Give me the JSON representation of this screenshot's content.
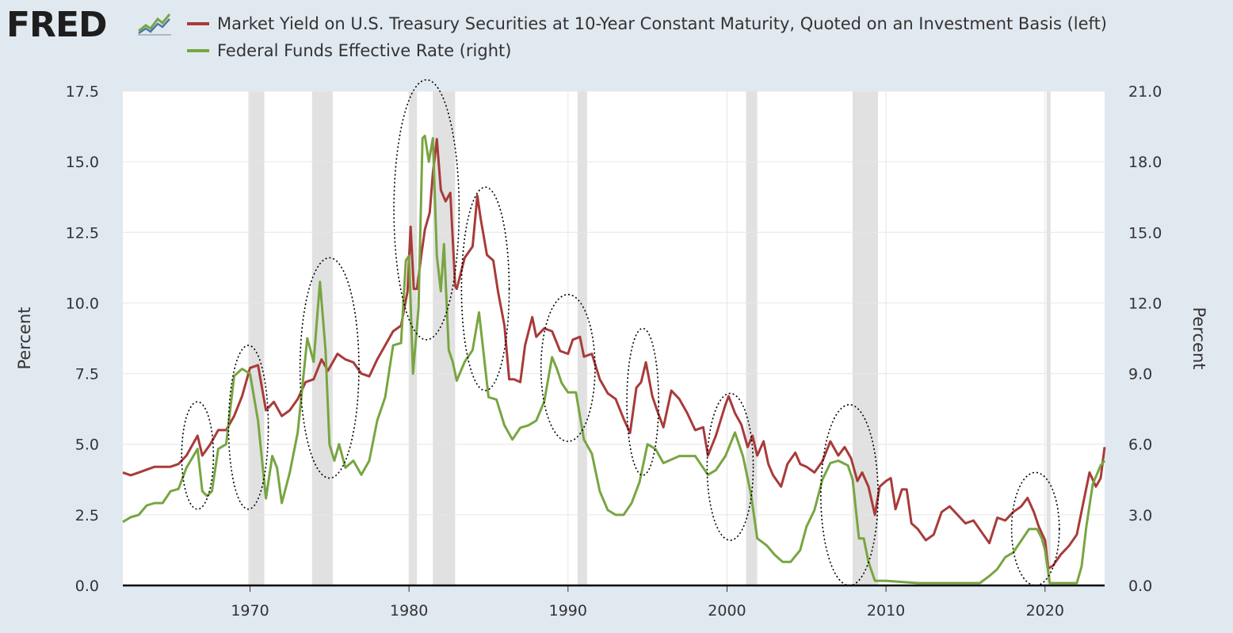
{
  "header": {
    "logo_text": "FRED",
    "logo_icon": "fred-line-chart-icon"
  },
  "colors": {
    "series1": "#a83b3a",
    "series2": "#78a542",
    "recession": "#e1e1e1",
    "plot_bg": "#ffffff",
    "page_bg": "#e1e9f0",
    "annotation": "#000000"
  },
  "chart_data": {
    "type": "line",
    "x_axis": {
      "min": 1962.0,
      "max": 2023.75,
      "ticks": [
        "1970",
        "1980",
        "1990",
        "2000",
        "2010",
        "2020"
      ]
    },
    "left_axis": {
      "label": "Percent",
      "min": 0,
      "max": 17.5,
      "ticks": [
        "0.0",
        "2.5",
        "5.0",
        "7.5",
        "10.0",
        "12.5",
        "15.0",
        "17.5"
      ]
    },
    "right_axis": {
      "label": "Percent",
      "min": 0,
      "max": 21,
      "ticks": [
        "0.0",
        "3.0",
        "6.0",
        "9.0",
        "12.0",
        "15.0",
        "18.0",
        "21.0"
      ]
    },
    "grid": true,
    "legend_position": "top-left",
    "recessions": [
      [
        1969.9,
        1970.9
      ],
      [
        1973.9,
        1975.2
      ],
      [
        1980.0,
        1980.5
      ],
      [
        1981.5,
        1982.9
      ],
      [
        1990.6,
        1991.2
      ],
      [
        2001.2,
        2001.9
      ],
      [
        2007.9,
        2009.5
      ],
      [
        2020.1,
        2020.35
      ]
    ],
    "series": [
      {
        "name": "Market Yield on U.S. Treasury Securities at 10-Year Constant Maturity, Quoted on an Investment Basis (left)",
        "axis": "left",
        "x": [
          1962.0,
          1962.5,
          1963.0,
          1964.0,
          1965.0,
          1965.5,
          1966.0,
          1966.7,
          1967.0,
          1967.5,
          1968.0,
          1968.5,
          1969.0,
          1969.5,
          1970.0,
          1970.5,
          1971.0,
          1971.5,
          1972.0,
          1972.5,
          1973.0,
          1973.5,
          1974.0,
          1974.5,
          1974.9,
          1975.5,
          1976.0,
          1976.5,
          1977.0,
          1977.5,
          1978.0,
          1978.5,
          1979.0,
          1979.5,
          1979.9,
          1980.1,
          1980.3,
          1980.5,
          1980.8,
          1981.0,
          1981.3,
          1981.5,
          1981.75,
          1982.0,
          1982.3,
          1982.6,
          1982.9,
          1983.0,
          1983.5,
          1984.0,
          1984.3,
          1984.5,
          1984.9,
          1985.3,
          1985.6,
          1986.0,
          1986.3,
          1986.6,
          1987.0,
          1987.3,
          1987.75,
          1988.0,
          1988.5,
          1989.0,
          1989.5,
          1990.0,
          1990.3,
          1990.75,
          1991.0,
          1991.5,
          1992.0,
          1992.5,
          1993.0,
          1993.5,
          1993.9,
          1994.3,
          1994.6,
          1994.9,
          1995.3,
          1995.6,
          1996.0,
          1996.5,
          1997.0,
          1997.5,
          1998.0,
          1998.5,
          1998.8,
          1999.3,
          1999.9,
          2000.1,
          2000.5,
          2000.9,
          2001.3,
          2001.6,
          2001.9,
          2002.3,
          2002.6,
          2002.9,
          2003.4,
          2003.8,
          2004.3,
          2004.6,
          2005.0,
          2005.5,
          2006.0,
          2006.5,
          2007.0,
          2007.4,
          2007.8,
          2008.2,
          2008.5,
          2008.9,
          2009.3,
          2009.6,
          2010.0,
          2010.3,
          2010.6,
          2011.0,
          2011.3,
          2011.6,
          2012.0,
          2012.5,
          2013.0,
          2013.5,
          2014.0,
          2014.5,
          2015.0,
          2015.5,
          2016.0,
          2016.5,
          2017.0,
          2017.5,
          2018.0,
          2018.5,
          2018.9,
          2019.3,
          2019.6,
          2020.0,
          2020.2,
          2020.5,
          2021.0,
          2021.5,
          2022.0,
          2022.4,
          2022.8,
          2023.2,
          2023.5,
          2023.75
        ],
        "values": [
          4.0,
          3.9,
          4.0,
          4.2,
          4.2,
          4.3,
          4.6,
          5.3,
          4.6,
          5.0,
          5.5,
          5.5,
          6.0,
          6.7,
          7.7,
          7.8,
          6.2,
          6.5,
          6.0,
          6.2,
          6.6,
          7.2,
          7.3,
          8.0,
          7.6,
          8.2,
          8.0,
          7.9,
          7.5,
          7.4,
          8.0,
          8.5,
          9.0,
          9.2,
          10.4,
          12.7,
          10.5,
          10.5,
          11.8,
          12.6,
          13.2,
          14.6,
          15.8,
          14.0,
          13.6,
          13.9,
          10.6,
          10.5,
          11.6,
          12.0,
          13.8,
          13.0,
          11.7,
          11.5,
          10.4,
          9.2,
          7.3,
          7.3,
          7.2,
          8.5,
          9.5,
          8.8,
          9.1,
          9.0,
          8.3,
          8.2,
          8.7,
          8.8,
          8.1,
          8.2,
          7.3,
          6.8,
          6.6,
          5.9,
          5.4,
          7.0,
          7.2,
          7.9,
          6.7,
          6.2,
          5.6,
          6.9,
          6.6,
          6.1,
          5.5,
          5.6,
          4.6,
          5.3,
          6.4,
          6.7,
          6.1,
          5.7,
          4.9,
          5.3,
          4.6,
          5.1,
          4.3,
          3.9,
          3.5,
          4.3,
          4.7,
          4.3,
          4.2,
          4.0,
          4.4,
          5.1,
          4.6,
          4.9,
          4.5,
          3.7,
          4.0,
          3.5,
          2.5,
          3.5,
          3.7,
          3.8,
          2.7,
          3.4,
          3.4,
          2.2,
          2.0,
          1.6,
          1.8,
          2.6,
          2.8,
          2.5,
          2.2,
          2.3,
          1.9,
          1.5,
          2.4,
          2.3,
          2.6,
          2.8,
          3.1,
          2.6,
          2.1,
          1.6,
          0.6,
          0.7,
          1.1,
          1.4,
          1.8,
          2.9,
          4.0,
          3.5,
          3.8,
          4.9
        ]
      },
      {
        "name": "Federal Funds Effective Rate (right)",
        "axis": "right",
        "x": [
          1962.0,
          1962.5,
          1963.0,
          1963.5,
          1964.0,
          1964.5,
          1965.0,
          1965.5,
          1966.0,
          1966.7,
          1967.0,
          1967.3,
          1967.6,
          1968.0,
          1968.5,
          1969.0,
          1969.5,
          1970.0,
          1970.5,
          1971.0,
          1971.4,
          1971.7,
          1972.0,
          1972.5,
          1973.0,
          1973.6,
          1974.0,
          1974.4,
          1974.75,
          1975.0,
          1975.3,
          1975.6,
          1976.0,
          1976.5,
          1977.0,
          1977.5,
          1978.0,
          1978.5,
          1979.0,
          1979.5,
          1979.8,
          1980.0,
          1980.25,
          1980.6,
          1980.85,
          1981.0,
          1981.25,
          1981.5,
          1981.75,
          1982.0,
          1982.2,
          1982.5,
          1982.75,
          1983.0,
          1983.5,
          1984.0,
          1984.4,
          1984.75,
          1985.0,
          1985.5,
          1986.0,
          1986.5,
          1987.0,
          1987.5,
          1988.0,
          1988.5,
          1989.0,
          1989.3,
          1989.6,
          1990.0,
          1990.5,
          1991.0,
          1991.5,
          1992.0,
          1992.5,
          1993.0,
          1993.5,
          1994.0,
          1994.5,
          1995.0,
          1995.5,
          1996.0,
          1997.0,
          1998.0,
          1998.8,
          1999.3,
          1999.9,
          2000.5,
          2001.0,
          2001.5,
          2001.9,
          2002.5,
          2003.0,
          2003.5,
          2004.0,
          2004.6,
          2005.0,
          2005.5,
          2006.0,
          2006.5,
          2007.0,
          2007.6,
          2007.9,
          2008.3,
          2008.6,
          2008.9,
          2009.3,
          2010.0,
          2012.0,
          2014.0,
          2015.9,
          2016.5,
          2017.0,
          2017.5,
          2018.0,
          2018.5,
          2019.0,
          2019.5,
          2019.8,
          2020.0,
          2020.3,
          2020.6,
          2021.0,
          2022.0,
          2022.3,
          2022.6,
          2023.0,
          2023.5,
          2023.75
        ],
        "values": [
          2.7,
          2.9,
          3.0,
          3.4,
          3.5,
          3.5,
          4.0,
          4.1,
          5.0,
          5.8,
          4.0,
          3.8,
          4.0,
          5.8,
          6.0,
          8.9,
          9.2,
          9.0,
          7.0,
          3.7,
          5.5,
          5.0,
          3.5,
          4.8,
          6.5,
          10.5,
          9.5,
          12.9,
          10.0,
          6.0,
          5.3,
          6.0,
          5.0,
          5.3,
          4.7,
          5.3,
          7.0,
          8.0,
          10.2,
          10.3,
          13.8,
          14.0,
          9.0,
          11.8,
          19.0,
          19.1,
          18.0,
          19.0,
          14.0,
          12.5,
          14.5,
          10.0,
          9.5,
          8.7,
          9.5,
          10.0,
          11.6,
          9.5,
          8.0,
          7.9,
          6.8,
          6.2,
          6.7,
          6.8,
          7.0,
          7.8,
          9.7,
          9.2,
          8.6,
          8.2,
          8.2,
          6.2,
          5.6,
          4.0,
          3.2,
          3.0,
          3.0,
          3.5,
          4.4,
          6.0,
          5.8,
          5.2,
          5.5,
          5.5,
          4.7,
          4.9,
          5.5,
          6.5,
          5.5,
          3.9,
          2.0,
          1.7,
          1.3,
          1.0,
          1.0,
          1.5,
          2.5,
          3.2,
          4.5,
          5.2,
          5.3,
          5.1,
          4.5,
          2.0,
          2.0,
          1.0,
          0.2,
          0.2,
          0.1,
          0.1,
          0.1,
          0.4,
          0.7,
          1.2,
          1.4,
          1.9,
          2.4,
          2.4,
          2.0,
          1.5,
          0.1,
          0.1,
          0.1,
          0.1,
          0.8,
          2.5,
          4.3,
          5.1,
          5.3
        ]
      }
    ],
    "annotations": "dotted ellipses highlighting rate-peak periods"
  }
}
